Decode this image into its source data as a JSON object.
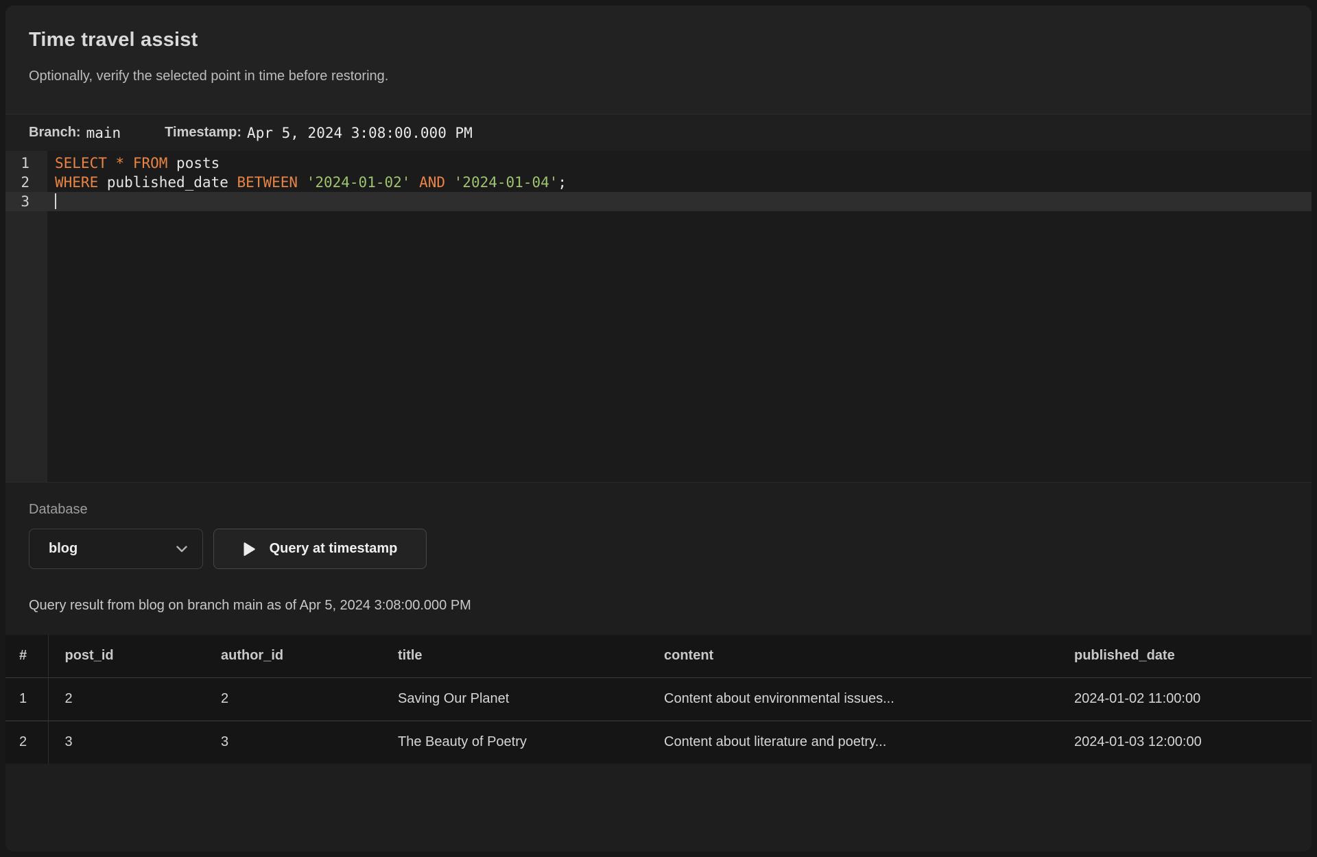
{
  "window": {
    "title": "Time travel assist",
    "subtitle": "Optionally, verify the selected point in time before restoring."
  },
  "branch_bar": {
    "branch_label": "Branch:",
    "branch_value": "main",
    "timestamp_label": "Timestamp:",
    "timestamp_value": "Apr 5, 2024 3:08:00.000 PM"
  },
  "editor": {
    "lines": [
      {
        "number": "1",
        "active": false,
        "tokens": [
          {
            "type": "keyword",
            "text": "SELECT"
          },
          {
            "type": "plain",
            "text": " "
          },
          {
            "type": "keyword",
            "text": "*"
          },
          {
            "type": "plain",
            "text": " "
          },
          {
            "type": "keyword",
            "text": "FROM"
          },
          {
            "type": "plain",
            "text": " posts"
          }
        ]
      },
      {
        "number": "2",
        "active": false,
        "tokens": [
          {
            "type": "keyword",
            "text": "WHERE"
          },
          {
            "type": "plain",
            "text": " published_date "
          },
          {
            "type": "keyword",
            "text": "BETWEEN"
          },
          {
            "type": "plain",
            "text": " "
          },
          {
            "type": "string",
            "text": "'2024-01-02'"
          },
          {
            "type": "plain",
            "text": " "
          },
          {
            "type": "keyword",
            "text": "AND"
          },
          {
            "type": "plain",
            "text": " "
          },
          {
            "type": "string",
            "text": "'2024-01-04'"
          },
          {
            "type": "plain",
            "text": ";"
          }
        ]
      },
      {
        "number": "3",
        "active": true,
        "tokens": []
      }
    ]
  },
  "database": {
    "label": "Database",
    "selected": "blog"
  },
  "actions": {
    "run_label": "Query at timestamp"
  },
  "result": {
    "caption": "Query result from blog on branch main as of Apr 5, 2024 3:08:00.000 PM"
  },
  "table": {
    "columns": [
      "#",
      "post_id",
      "author_id",
      "title",
      "content",
      "published_date"
    ],
    "rows": [
      [
        "1",
        "2",
        "2",
        "Saving Our Planet",
        "Content about environmental issues...",
        "2024-01-02 11:00:00"
      ],
      [
        "2",
        "3",
        "3",
        "The Beauty of Poetry",
        "Content about literature and poetry...",
        "2024-01-03 12:00:00"
      ]
    ]
  },
  "icons": {
    "dropdown": "chevron-down-icon",
    "run": "play-icon"
  },
  "colors": {
    "background": "#181818",
    "card": "#222222",
    "editor_bg": "#1b1b1b",
    "gutter_bg": "#262626",
    "active_line": "#2e2e2e",
    "keyword": "#ea8445",
    "string": "#9dc46e"
  }
}
